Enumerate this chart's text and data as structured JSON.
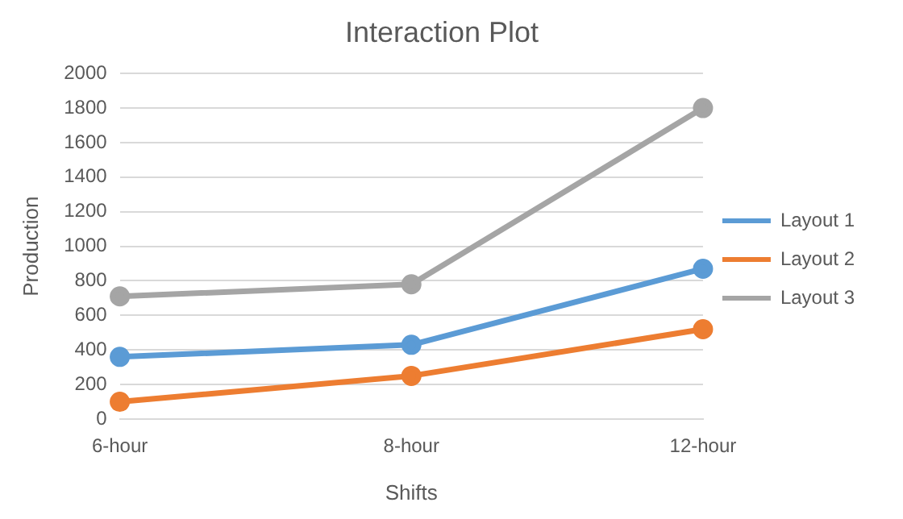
{
  "chart_data": {
    "type": "line",
    "title": "Interaction Plot",
    "xlabel": "Shifts",
    "ylabel": "Production",
    "categories": [
      "6-hour",
      "8-hour",
      "12-hour"
    ],
    "series": [
      {
        "name": "Layout 1",
        "color": "#5b9bd5",
        "values": [
          360,
          430,
          870
        ]
      },
      {
        "name": "Layout 2",
        "color": "#ed7d31",
        "values": [
          100,
          250,
          520
        ]
      },
      {
        "name": "Layout 3",
        "color": "#a5a5a5",
        "values": [
          710,
          780,
          1800
        ]
      }
    ],
    "ylim": [
      0,
      2000
    ],
    "yticks": [
      0,
      200,
      400,
      600,
      800,
      1000,
      1200,
      1400,
      1600,
      1800,
      2000
    ],
    "grid": "y",
    "legend": "right",
    "marker": "circle",
    "line_style": "solid"
  }
}
